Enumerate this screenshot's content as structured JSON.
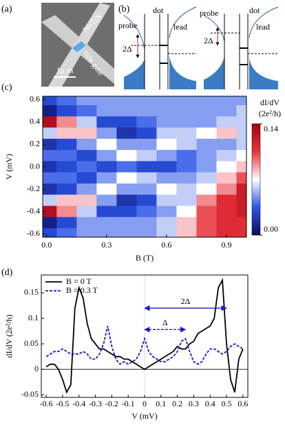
{
  "panel_labels": [
    "(a)",
    "(b)",
    "(c)",
    "(d)"
  ],
  "panel_a": {
    "material": "NbTiN",
    "gate": "side gate",
    "scale_bar": "1μ m"
  },
  "panel_b": {
    "left": {
      "probe": "probe",
      "dot": "dot",
      "lead": "lead",
      "gap": "2Δ"
    },
    "right": {
      "probe": "probe",
      "dot": "dot",
      "lead": "lead",
      "gap": "2Δ"
    }
  },
  "chart_data": [
    {
      "type": "heatmap",
      "xlabel": "B (T)",
      "ylabel": "V (mV)",
      "colorbar_label": [
        "dI/dV",
        "(2e²/h)"
      ],
      "x": [
        0,
        0.1,
        0.2,
        0.3,
        0.4,
        0.5,
        0.6,
        0.7,
        0.8,
        0.9,
        1.0
      ],
      "y": [
        0.6,
        0.5,
        0.4,
        0.3,
        0.2,
        0.1,
        0,
        -0.1,
        -0.2,
        -0.3,
        -0.4,
        -0.5,
        -0.6
      ],
      "z": [
        [
          0.03,
          0.04,
          0.05,
          0.05,
          0.05,
          0.05,
          0.05,
          0.05,
          0.05,
          0.05,
          0.05
        ],
        [
          0.01,
          0.03,
          0.04,
          0.05,
          0.05,
          0.05,
          0.05,
          0.05,
          0.05,
          0.05,
          0.06
        ],
        [
          0.13,
          0.09,
          0.06,
          0.03,
          0.03,
          0.04,
          0.05,
          0.05,
          0.05,
          0.06,
          0.06
        ],
        [
          0.06,
          0.08,
          0.08,
          0.05,
          0.02,
          0.03,
          0.06,
          0.06,
          0.07,
          0.08,
          0.06
        ],
        [
          0.02,
          0.03,
          0.05,
          0.07,
          0.05,
          0.05,
          0.07,
          0.06,
          0.05,
          0.05,
          0.06
        ],
        [
          0.04,
          0.04,
          0.03,
          0.05,
          0.07,
          0.06,
          0.05,
          0.04,
          0.05,
          0.06,
          0.07
        ],
        [
          0.02,
          0.03,
          0.04,
          0.03,
          0.04,
          0.03,
          0.03,
          0.04,
          0.05,
          0.07,
          0.08
        ],
        [
          0.04,
          0.04,
          0.03,
          0.05,
          0.07,
          0.06,
          0.05,
          0.05,
          0.06,
          0.08,
          0.1
        ],
        [
          0.02,
          0.03,
          0.05,
          0.07,
          0.05,
          0.05,
          0.07,
          0.06,
          0.07,
          0.09,
          0.12
        ],
        [
          0.06,
          0.08,
          0.08,
          0.05,
          0.02,
          0.03,
          0.06,
          0.06,
          0.09,
          0.11,
          0.12
        ],
        [
          0.13,
          0.09,
          0.06,
          0.03,
          0.03,
          0.04,
          0.05,
          0.07,
          0.1,
          0.11,
          0.12
        ],
        [
          0.01,
          0.03,
          0.05,
          0.05,
          0.05,
          0.05,
          0.06,
          0.08,
          0.1,
          0.11,
          0.11
        ],
        [
          0.03,
          0.04,
          0.05,
          0.05,
          0.05,
          0.05,
          0.06,
          0.08,
          0.1,
          0.11,
          0.11
        ]
      ],
      "xlim": [
        -0.02,
        1.0
      ],
      "ylim": [
        -0.63,
        0.63
      ],
      "xticks": [
        {
          "value": 0,
          "label": "0.0"
        },
        0.3,
        0.6,
        0.9
      ],
      "yticks": [
        0.6,
        0.4,
        0.2,
        {
          "value": 0,
          "label": "0.0"
        },
        -0.2,
        -0.4,
        -0.6
      ],
      "clim": [
        0,
        0.14
      ],
      "cticks": [
        0.14,
        {
          "value": 0,
          "label": "0.00"
        }
      ],
      "colormap": [
        "#0b0b5e",
        "#2c55e6",
        "#ffffff",
        "#e8323a",
        "#a00015"
      ]
    },
    {
      "type": "line",
      "xlabel": "V (mV)",
      "ylabel": "dI/dV (2e²/h)",
      "x": [
        -0.6,
        -0.575,
        -0.55,
        -0.525,
        -0.5,
        -0.475,
        -0.45,
        -0.425,
        -0.4,
        -0.375,
        -0.35,
        -0.325,
        -0.3,
        -0.275,
        -0.25,
        -0.225,
        -0.2,
        -0.175,
        -0.15,
        -0.125,
        -0.1,
        -0.075,
        -0.05,
        -0.025,
        0,
        0.025,
        0.05,
        0.075,
        0.1,
        0.125,
        0.15,
        0.175,
        0.2,
        0.225,
        0.25,
        0.275,
        0.3,
        0.325,
        0.35,
        0.375,
        0.4,
        0.425,
        0.45,
        0.475,
        0.5,
        0.525,
        0.55,
        0.575,
        0.6
      ],
      "series": [
        {
          "name": "B = 0 T",
          "color": "#000000",
          "dash": false,
          "values": [
            0.005,
            0.01,
            0.01,
            0,
            -0.02,
            -0.045,
            -0.03,
            0.12,
            0.16,
            0.14,
            0.09,
            0.06,
            0.05,
            0.04,
            0.04,
            0.035,
            0.03,
            0.025,
            0.025,
            0.02,
            0.02,
            0.015,
            0.01,
            0.005,
            0,
            0.005,
            0.01,
            0.015,
            0.02,
            0.025,
            0.03,
            0.035,
            0.045,
            0.04,
            0.04,
            0.05,
            0.055,
            0.07,
            0.075,
            0.08,
            0.085,
            0.1,
            0.16,
            0.175,
            0.05,
            -0.02,
            -0.045,
            0.02,
            0.04
          ]
        },
        {
          "name": "B = 0.3 T",
          "color": "#1a1acc",
          "dash": true,
          "values": [
            0.025,
            0.03,
            0.035,
            0.035,
            0.04,
            0.035,
            0.03,
            0.03,
            0.03,
            0.035,
            0.03,
            0.02,
            0.02,
            0.03,
            0.05,
            0.085,
            0.045,
            0.02,
            0.01,
            0.015,
            0.01,
            0.015,
            0.02,
            0.035,
            0.06,
            0.035,
            0.025,
            0.02,
            0.015,
            0.015,
            0.02,
            0.025,
            0.035,
            0.055,
            0.06,
            0.035,
            0.015,
            0.01,
            0.015,
            0.03,
            0.04,
            0.04,
            0.035,
            0.03,
            0.035,
            0.045,
            0.05,
            0.045,
            0.04
          ]
        }
      ],
      "annotations": [
        {
          "text": "2Δ",
          "x": [
            0,
            0.5
          ],
          "y": 0.12,
          "color": "#1a1acc",
          "dash": false
        },
        {
          "text": "Δ",
          "x": [
            0,
            0.25
          ],
          "y": 0.078,
          "color": "#1a1acc",
          "dash": true
        }
      ],
      "xlim": [
        -0.63,
        0.63
      ],
      "ylim": [
        -0.055,
        0.185
      ],
      "xticks": [
        -0.6,
        -0.5,
        -0.4,
        -0.3,
        -0.2,
        -0.1,
        0,
        0.1,
        0.2,
        0.3,
        0.4,
        0.5,
        0.6
      ],
      "yticks": [
        -0.05,
        0,
        0.05,
        0.1,
        0.15
      ],
      "legend": "upper left"
    }
  ]
}
